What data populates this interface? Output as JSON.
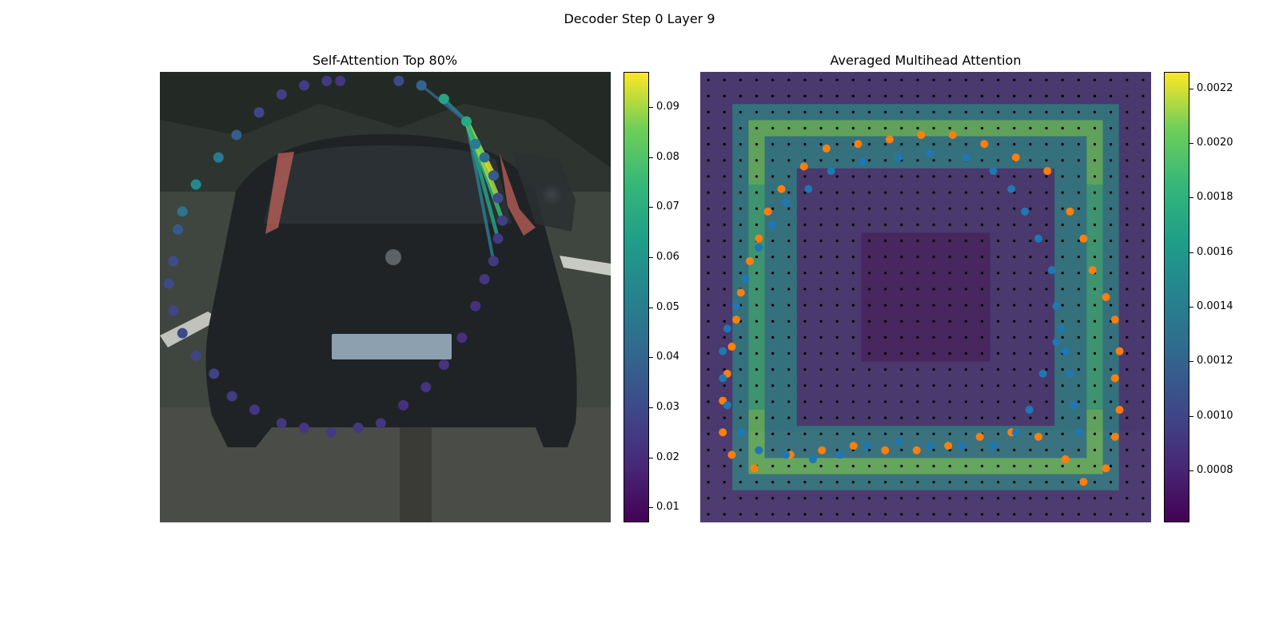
{
  "figure": {
    "suptitle": "Decoder Step 0 Layer 9"
  },
  "chart_data": [
    {
      "type": "scatter",
      "title": "Self-Attention Top 80%",
      "background": "photo of the rear of a dark hatchback car on a street",
      "x_range": [
        0,
        1
      ],
      "y_range": [
        0,
        1
      ],
      "colormap": "viridis",
      "colorbar": {
        "range": [
          0.007,
          0.097
        ],
        "ticks": [
          0.01,
          0.02,
          0.03,
          0.04,
          0.05,
          0.06,
          0.07,
          0.08,
          0.09
        ]
      },
      "points": [
        [
          0.4,
          0.98,
          0.023
        ],
        [
          0.37,
          0.98,
          0.024
        ],
        [
          0.32,
          0.97,
          0.025
        ],
        [
          0.27,
          0.95,
          0.026
        ],
        [
          0.22,
          0.91,
          0.029
        ],
        [
          0.17,
          0.86,
          0.037
        ],
        [
          0.13,
          0.81,
          0.048
        ],
        [
          0.08,
          0.75,
          0.055
        ],
        [
          0.05,
          0.69,
          0.045
        ],
        [
          0.04,
          0.65,
          0.035
        ],
        [
          0.03,
          0.58,
          0.031
        ],
        [
          0.02,
          0.53,
          0.03
        ],
        [
          0.03,
          0.47,
          0.028
        ],
        [
          0.05,
          0.42,
          0.03
        ],
        [
          0.08,
          0.37,
          0.028
        ],
        [
          0.12,
          0.33,
          0.027
        ],
        [
          0.16,
          0.28,
          0.025
        ],
        [
          0.21,
          0.25,
          0.023
        ],
        [
          0.27,
          0.22,
          0.023
        ],
        [
          0.32,
          0.21,
          0.023
        ],
        [
          0.38,
          0.2,
          0.024
        ],
        [
          0.44,
          0.21,
          0.024
        ],
        [
          0.49,
          0.22,
          0.023
        ],
        [
          0.54,
          0.26,
          0.021
        ],
        [
          0.59,
          0.3,
          0.022
        ],
        [
          0.63,
          0.35,
          0.022
        ],
        [
          0.67,
          0.41,
          0.021
        ],
        [
          0.7,
          0.48,
          0.021
        ],
        [
          0.72,
          0.54,
          0.023
        ],
        [
          0.74,
          0.58,
          0.024
        ],
        [
          0.75,
          0.63,
          0.024
        ],
        [
          0.76,
          0.67,
          0.026
        ],
        [
          0.75,
          0.72,
          0.031
        ],
        [
          0.74,
          0.77,
          0.036
        ],
        [
          0.72,
          0.81,
          0.042
        ],
        [
          0.7,
          0.84,
          0.049
        ],
        [
          0.68,
          0.89,
          0.068
        ],
        [
          0.63,
          0.94,
          0.067
        ],
        [
          0.58,
          0.97,
          0.04
        ],
        [
          0.53,
          0.98,
          0.03
        ]
      ],
      "source_point": 36,
      "attention_links": [
        [
          29,
          0.05
        ],
        [
          30,
          0.065
        ],
        [
          31,
          0.075
        ],
        [
          32,
          0.09
        ],
        [
          33,
          0.095
        ],
        [
          34,
          0.085
        ],
        [
          35,
          0.07
        ],
        [
          37,
          0.055
        ],
        [
          38,
          0.04
        ]
      ]
    },
    {
      "type": "heatmap",
      "title": "Averaged Multihead Attention",
      "background": "blurred photo of the rear of a dark hatchback car",
      "x_range": [
        0,
        1
      ],
      "y_range": [
        0,
        1
      ],
      "colormap": "viridis",
      "colorbar": {
        "range": [
          0.00061,
          0.00226
        ],
        "ticks": [
          0.0008,
          0.001,
          0.0012,
          0.0014,
          0.0016,
          0.0018,
          0.002,
          0.0022
        ]
      },
      "heatmap": {
        "grid_size": 28,
        "value_range": [
          0.00061,
          0.00226
        ],
        "background_value": 0.0008,
        "bands": [
          {
            "inner": 0.3,
            "outer": 0.44,
            "value": 0.0014
          },
          {
            "inner": 0.34,
            "outer": 0.4,
            "value": 0.00185
          },
          {
            "inner": 0.0,
            "outer": 0.16,
            "value": 0.00065
          }
        ]
      },
      "series": [
        {
          "color": "#ff7f0e",
          "points": [
            [
              0.85,
              0.09
            ],
            [
              0.9,
              0.12
            ],
            [
              0.92,
              0.19
            ],
            [
              0.93,
              0.25
            ],
            [
              0.92,
              0.32
            ],
            [
              0.93,
              0.38
            ],
            [
              0.92,
              0.45
            ],
            [
              0.9,
              0.5
            ],
            [
              0.87,
              0.56
            ],
            [
              0.85,
              0.63
            ],
            [
              0.82,
              0.69
            ],
            [
              0.77,
              0.78
            ],
            [
              0.7,
              0.81
            ],
            [
              0.63,
              0.84
            ],
            [
              0.56,
              0.86
            ],
            [
              0.49,
              0.86
            ],
            [
              0.42,
              0.85
            ],
            [
              0.35,
              0.84
            ],
            [
              0.28,
              0.83
            ],
            [
              0.23,
              0.79
            ],
            [
              0.18,
              0.74
            ],
            [
              0.15,
              0.69
            ],
            [
              0.13,
              0.63
            ],
            [
              0.11,
              0.58
            ],
            [
              0.09,
              0.51
            ],
            [
              0.08,
              0.45
            ],
            [
              0.07,
              0.39
            ],
            [
              0.06,
              0.33
            ],
            [
              0.05,
              0.27
            ],
            [
              0.05,
              0.2
            ],
            [
              0.07,
              0.15
            ],
            [
              0.12,
              0.12
            ],
            [
              0.2,
              0.15
            ],
            [
              0.27,
              0.16
            ],
            [
              0.34,
              0.17
            ],
            [
              0.41,
              0.16
            ],
            [
              0.48,
              0.16
            ],
            [
              0.55,
              0.17
            ],
            [
              0.62,
              0.19
            ],
            [
              0.69,
              0.2
            ],
            [
              0.75,
              0.19
            ],
            [
              0.81,
              0.14
            ]
          ]
        },
        {
          "color": "#1f77b4",
          "points": [
            [
              0.84,
              0.2
            ],
            [
              0.83,
              0.26
            ],
            [
              0.82,
              0.33
            ],
            [
              0.81,
              0.38
            ],
            [
              0.8,
              0.43
            ],
            [
              0.79,
              0.48
            ],
            [
              0.78,
              0.56
            ],
            [
              0.75,
              0.63
            ],
            [
              0.72,
              0.69
            ],
            [
              0.69,
              0.74
            ],
            [
              0.65,
              0.78
            ],
            [
              0.59,
              0.81
            ],
            [
              0.51,
              0.82
            ],
            [
              0.44,
              0.81
            ],
            [
              0.36,
              0.8
            ],
            [
              0.29,
              0.78
            ],
            [
              0.24,
              0.74
            ],
            [
              0.19,
              0.71
            ],
            [
              0.16,
              0.66
            ],
            [
              0.13,
              0.61
            ],
            [
              0.1,
              0.54
            ],
            [
              0.08,
              0.48
            ],
            [
              0.06,
              0.43
            ],
            [
              0.05,
              0.38
            ],
            [
              0.05,
              0.32
            ],
            [
              0.06,
              0.26
            ],
            [
              0.09,
              0.2
            ],
            [
              0.13,
              0.16
            ],
            [
              0.19,
              0.15
            ],
            [
              0.25,
              0.14
            ],
            [
              0.31,
              0.15
            ],
            [
              0.37,
              0.17
            ],
            [
              0.44,
              0.18
            ],
            [
              0.51,
              0.17
            ],
            [
              0.58,
              0.17
            ],
            [
              0.65,
              0.17
            ],
            [
              0.7,
              0.2
            ],
            [
              0.73,
              0.25
            ],
            [
              0.76,
              0.33
            ],
            [
              0.79,
              0.4
            ]
          ]
        },
        {
          "color": "#000000",
          "label": "grid",
          "grid_points": 28
        }
      ]
    }
  ]
}
